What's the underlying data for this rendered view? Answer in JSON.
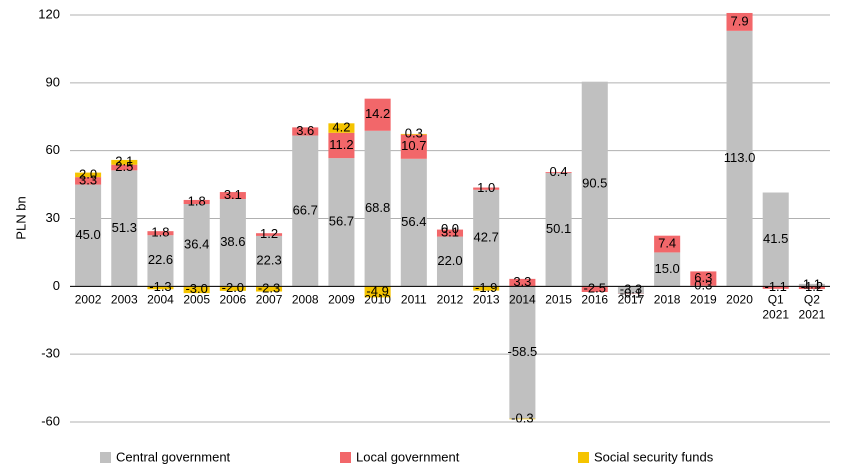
{
  "chart_data": {
    "type": "stacked-bar",
    "y_label": "PLN bn",
    "categories": [
      "2002",
      "2003",
      "2004",
      "2005",
      "2006",
      "2007",
      "2008",
      "2009",
      "2010",
      "2011",
      "2012",
      "2013",
      "2014",
      "2015",
      "2016",
      "2017",
      "2018",
      "2019",
      "2020",
      "Q1 2021",
      "Q2 2021"
    ],
    "series": [
      {
        "name": "Central government",
        "color": "#c0c0c0",
        "values": [
          45.0,
          51.3,
          22.6,
          36.4,
          38.6,
          22.3,
          66.7,
          56.7,
          68.8,
          56.4,
          22.0,
          42.7,
          -58.5,
          50.1,
          90.5,
          -3.3,
          15.0,
          0.3,
          113.0,
          41.5,
          1.1
        ],
        "value_labels": [
          "45.0",
          "51.3",
          "22.6",
          "36.4",
          "38.6",
          "22.3",
          "66.7",
          "56.7",
          "68.8",
          "56.4",
          "22.0",
          "42.7",
          "-58.5",
          "50.1",
          "90.5",
          "-3.3",
          "15.0",
          "0.3",
          "113.0",
          "41.5",
          "1.1"
        ]
      },
      {
        "name": "Local government",
        "color": "#f2676a",
        "values": [
          3.3,
          2.5,
          1.8,
          1.8,
          3.1,
          1.2,
          3.6,
          11.2,
          14.2,
          10.7,
          3.1,
          1.0,
          3.3,
          0.4,
          -2.5,
          -0.1,
          7.4,
          6.3,
          7.9,
          -1.1,
          -1.2
        ],
        "value_labels": [
          "3.3",
          "2.5",
          "1.8",
          "1.8",
          "3.1",
          "1.2",
          "3.6",
          "11.2",
          "14.2",
          "10.7",
          "3.1",
          "1.0",
          "3.3",
          "0.4",
          "-2.5",
          "-0.1",
          "7.4",
          "6.3",
          "7.9",
          "-1.1",
          "-1.2"
        ]
      },
      {
        "name": "Social security funds",
        "color": "#f5c400",
        "values": [
          2.0,
          2.1,
          -1.3,
          -3.0,
          -2.0,
          -2.3,
          null,
          4.2,
          -4.9,
          0.3,
          0.0,
          -1.9,
          -0.3,
          null,
          null,
          null,
          null,
          null,
          null,
          null,
          null
        ],
        "value_labels": [
          "2.0",
          "2.1",
          "-1.3",
          "-3.0",
          "-2.0",
          "-2.3",
          null,
          "4.2",
          "-4.9",
          "0.3",
          "0.0",
          "-1.9",
          "-0.3",
          null,
          null,
          null,
          null,
          null,
          null,
          null,
          null
        ]
      }
    ],
    "ylim": [
      -60,
      120
    ],
    "yticks": [
      -60,
      -30,
      0,
      30,
      60,
      90,
      120
    ],
    "grid": true
  }
}
